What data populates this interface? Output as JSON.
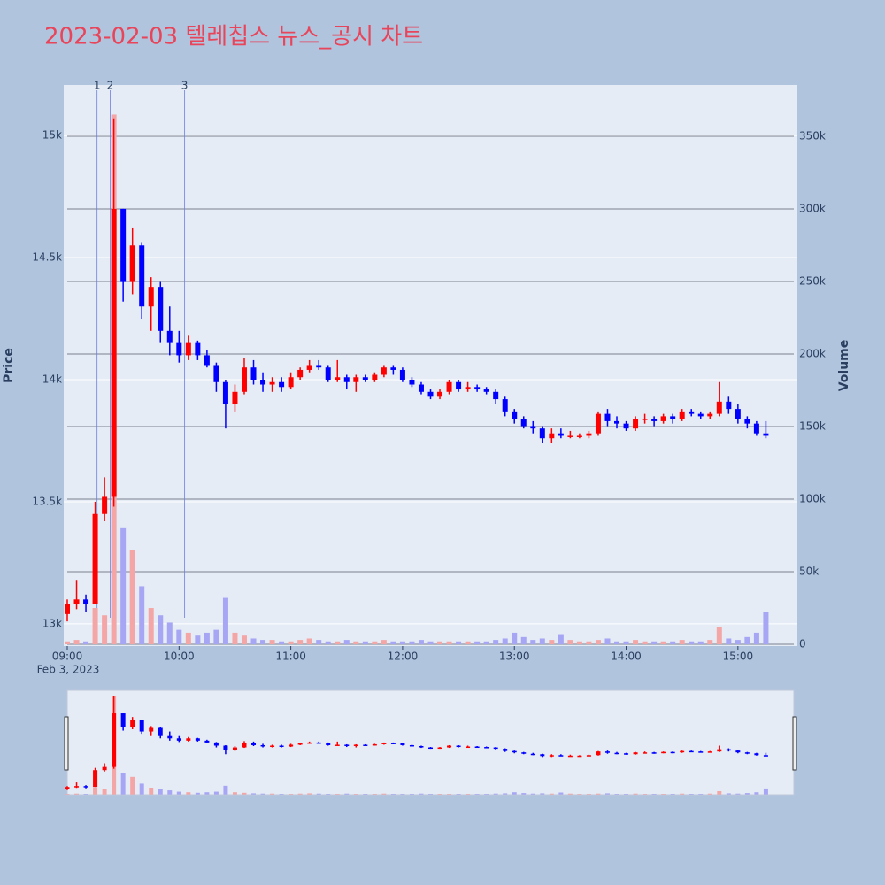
{
  "chart_data": {
    "type": "candlestick",
    "title": "2023-02-03 텔레칩스 뉴스_공시 차트",
    "y_label": "Price",
    "y2_label": "Volume",
    "x_date_label": "Feb 3, 2023",
    "up_color": "#ff0000",
    "down_color": "#0000ff",
    "up_volume_color": "#f4a6a6",
    "down_volume_color": "#a6a6f4",
    "xlim": [
      "09:00",
      "15:30"
    ],
    "xticks": [
      "09:00",
      "10:00",
      "11:00",
      "12:00",
      "13:00",
      "14:00",
      "15:00"
    ],
    "ylim": [
      12909,
      15207
    ],
    "yticks": [
      {
        "value": 13000,
        "label": "13k"
      },
      {
        "value": 13500,
        "label": "13.5k"
      },
      {
        "value": 14000,
        "label": "14k"
      },
      {
        "value": 14500,
        "label": "14.5k"
      },
      {
        "value": 15000,
        "label": "15k"
      }
    ],
    "y2lim": [
      -1200,
      385400
    ],
    "y2ticks": [
      0,
      {
        "value": 50000,
        "label": "50k"
      },
      {
        "value": 100000,
        "label": "100k"
      },
      {
        "value": 150000,
        "label": "150k"
      },
      {
        "value": 200000,
        "label": "200k"
      },
      {
        "value": 250000,
        "label": "250k"
      },
      {
        "value": 300000,
        "label": "300k"
      },
      {
        "value": 350000,
        "label": "350k"
      }
    ],
    "news": [
      {
        "label": "1",
        "x": "09:16"
      },
      {
        "label": "2",
        "x": "09:23"
      },
      {
        "label": "3",
        "x": "10:03"
      }
    ],
    "x": [
      "09:00",
      "09:05",
      "09:10",
      "09:15",
      "09:20",
      "09:25",
      "09:30",
      "09:35",
      "09:40",
      "09:45",
      "09:50",
      "09:55",
      "10:00",
      "10:05",
      "10:10",
      "10:15",
      "10:20",
      "10:25",
      "10:30",
      "10:35",
      "10:40",
      "10:45",
      "10:50",
      "10:55",
      "11:00",
      "11:05",
      "11:10",
      "11:15",
      "11:20",
      "11:25",
      "11:30",
      "11:35",
      "11:40",
      "11:45",
      "11:50",
      "11:55",
      "12:00",
      "12:05",
      "12:10",
      "12:15",
      "12:20",
      "12:25",
      "12:30",
      "12:35",
      "12:40",
      "12:45",
      "12:50",
      "12:55",
      "13:00",
      "13:05",
      "13:10",
      "13:15",
      "13:20",
      "13:25",
      "13:30",
      "13:35",
      "13:40",
      "13:45",
      "13:50",
      "13:55",
      "14:00",
      "14:05",
      "14:10",
      "14:15",
      "14:20",
      "14:25",
      "14:30",
      "14:35",
      "14:40",
      "14:45",
      "14:50",
      "14:55",
      "15:00",
      "15:05",
      "15:10",
      "15:15"
    ],
    "open": [
      13040,
      13080,
      13100,
      13080,
      13450,
      13520,
      14700,
      14400,
      14550,
      14300,
      14380,
      14200,
      14150,
      14100,
      14150,
      14100,
      14060,
      13990,
      13900,
      13950,
      14050,
      14000,
      13980,
      13990,
      13970,
      14010,
      14040,
      14060,
      14050,
      14000,
      14010,
      13990,
      14010,
      14000,
      14020,
      14050,
      14040,
      14000,
      13980,
      13950,
      13930,
      13950,
      13990,
      13960,
      13970,
      13960,
      13950,
      13920,
      13870,
      13840,
      13810,
      13800,
      13760,
      13780,
      13770,
      13770,
      13770,
      13780,
      13860,
      13830,
      13820,
      13800,
      13840,
      13840,
      13830,
      13850,
      13840,
      13870,
      13860,
      13850,
      13860,
      13910,
      13880,
      13840,
      13820,
      13780
    ],
    "high": [
      13100,
      13180,
      13120,
      13500,
      13600,
      15070,
      14700,
      14620,
      14560,
      14420,
      14400,
      14300,
      14200,
      14180,
      14160,
      14120,
      14070,
      14000,
      13980,
      14090,
      14080,
      14030,
      14010,
      14010,
      14030,
      14050,
      14080,
      14080,
      14060,
      14080,
      14020,
      14020,
      14020,
      14030,
      14060,
      14060,
      14050,
      14010,
      13990,
      13960,
      13960,
      14000,
      14000,
      13990,
      13980,
      13970,
      13960,
      13930,
      13880,
      13850,
      13830,
      13810,
      13800,
      13800,
      13790,
      13780,
      13790,
      13870,
      13880,
      13850,
      13830,
      13850,
      13860,
      13850,
      13860,
      13860,
      13880,
      13880,
      13870,
      13870,
      13990,
      13930,
      13900,
      13850,
      13830,
      13830
    ],
    "low": [
      13010,
      13060,
      13050,
      13080,
      13420,
      13480,
      14320,
      14350,
      14250,
      14200,
      14150,
      14100,
      14070,
      14080,
      14080,
      14050,
      13950,
      13800,
      13870,
      13940,
      13980,
      13950,
      13950,
      13950,
      13960,
      14000,
      14030,
      14040,
      13990,
      13990,
      13960,
      13950,
      13990,
      13990,
      14010,
      14020,
      13990,
      13970,
      13940,
      13920,
      13920,
      13940,
      13950,
      13950,
      13950,
      13940,
      13900,
      13850,
      13820,
      13800,
      13780,
      13740,
      13740,
      13760,
      13760,
      13760,
      13760,
      13770,
      13810,
      13800,
      13790,
      13790,
      13820,
      13810,
      13820,
      13820,
      13830,
      13850,
      13840,
      13840,
      13850,
      13860,
      13820,
      13800,
      13770,
      13760
    ],
    "close": [
      13080,
      13100,
      13080,
      13450,
      13520,
      14700,
      14400,
      14550,
      14300,
      14380,
      14200,
      14150,
      14100,
      14150,
      14100,
      14060,
      13990,
      13900,
      13950,
      14050,
      14000,
      13980,
      13990,
      13970,
      14010,
      14040,
      14060,
      14050,
      14000,
      14010,
      13990,
      14010,
      14000,
      14020,
      14050,
      14040,
      14000,
      13980,
      13950,
      13930,
      13950,
      13990,
      13960,
      13970,
      13960,
      13950,
      13920,
      13870,
      13840,
      13810,
      13800,
      13760,
      13780,
      13770,
      13770,
      13770,
      13780,
      13860,
      13830,
      13820,
      13800,
      13840,
      13840,
      13830,
      13850,
      13840,
      13870,
      13860,
      13850,
      13860,
      13910,
      13880,
      13840,
      13820,
      13780,
      13770
    ],
    "volume": [
      2000,
      3000,
      2000,
      25000,
      20000,
      365000,
      80000,
      65000,
      40000,
      25000,
      20000,
      15000,
      10000,
      8000,
      6000,
      8000,
      10000,
      32000,
      8000,
      6000,
      4000,
      3000,
      3000,
      2000,
      2000,
      3000,
      4000,
      3000,
      2000,
      2000,
      3000,
      2000,
      2000,
      2000,
      3000,
      2000,
      2000,
      2000,
      3000,
      2000,
      2000,
      2000,
      2000,
      2000,
      2000,
      2000,
      3000,
      4000,
      8000,
      5000,
      3000,
      4000,
      3000,
      7000,
      3000,
      2000,
      2000,
      3000,
      4000,
      2000,
      2000,
      3000,
      2000,
      2000,
      2000,
      2000,
      3000,
      2000,
      2000,
      3000,
      12000,
      4000,
      3000,
      5000,
      8000,
      22000
    ]
  }
}
